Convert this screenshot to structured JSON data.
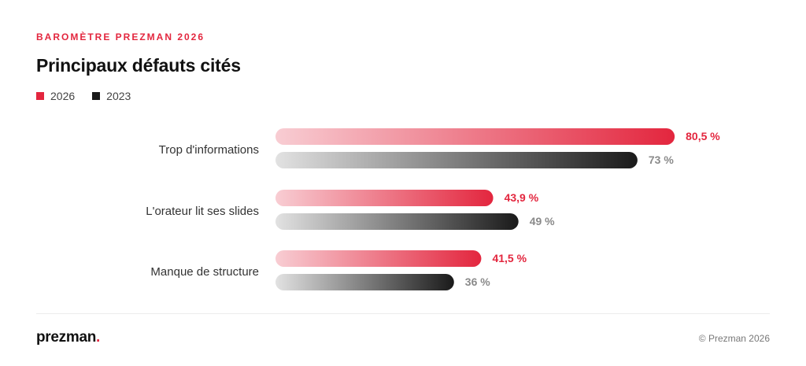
{
  "header": {
    "eyebrow": "BAROMÈTRE PREZMAN 2026",
    "title": "Principaux défauts cités"
  },
  "legend": [
    {
      "label": "2026",
      "color": "#e3263e"
    },
    {
      "label": "2023",
      "color": "#1a1a1a"
    }
  ],
  "chart_data": {
    "type": "bar",
    "orientation": "horizontal",
    "categories": [
      "Trop d'informations",
      "L'orateur lit ses slides",
      "Manque de structure"
    ],
    "series": [
      {
        "name": "2026",
        "values": [
          80.5,
          43.9,
          41.5
        ],
        "labels": [
          "80,5 %",
          "43,9 %",
          "41,5 %"
        ],
        "color": "#e3263e"
      },
      {
        "name": "2023",
        "values": [
          73,
          49,
          36
        ],
        "labels": [
          "73 %",
          "49 %",
          "36 %"
        ],
        "color": "#1a1a1a"
      }
    ],
    "xlim": [
      0,
      100
    ],
    "grid": false,
    "legend_position": "top-left"
  },
  "footer": {
    "brand": "prezman",
    "brand_dot": ".",
    "copyright": "© Prezman 2026"
  }
}
